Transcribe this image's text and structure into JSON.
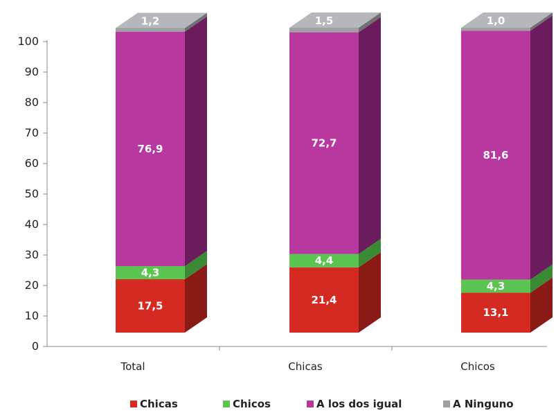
{
  "chart_data": {
    "type": "bar",
    "stacked": true,
    "three_d": true,
    "categories": [
      "Total",
      "Chicas",
      "Chicos"
    ],
    "series": [
      {
        "name": "Chicas",
        "values": [
          17.5,
          21.4,
          13.1
        ],
        "color": "#d42a22",
        "side": "#8a1a15"
      },
      {
        "name": "Chicos",
        "values": [
          4.3,
          4.4,
          4.3
        ],
        "color": "#5cc451",
        "side": "#3a8a33"
      },
      {
        "name": "A los dos igual",
        "values": [
          76.9,
          72.7,
          81.6
        ],
        "color": "#b8389f",
        "side": "#6a1c5c"
      },
      {
        "name": "A Ninguno",
        "values": [
          1.2,
          1.5,
          1.0
        ],
        "color": "#9ea0a3",
        "side": "#6e7073"
      }
    ],
    "data_labels": [
      [
        "17,5",
        "21,4",
        "13,1"
      ],
      [
        "4,3",
        "4,4",
        "4,3"
      ],
      [
        "76,9",
        "72,7",
        "81,6"
      ],
      [
        "1,2",
        "1,5",
        "1,0"
      ]
    ],
    "ylim": [
      0,
      100
    ],
    "yticks": [
      0,
      10,
      20,
      30,
      40,
      50,
      60,
      70,
      80,
      90,
      100
    ],
    "xlabel": "",
    "ylabel": "",
    "title": "",
    "legend_position": "bottom",
    "grid": false
  }
}
